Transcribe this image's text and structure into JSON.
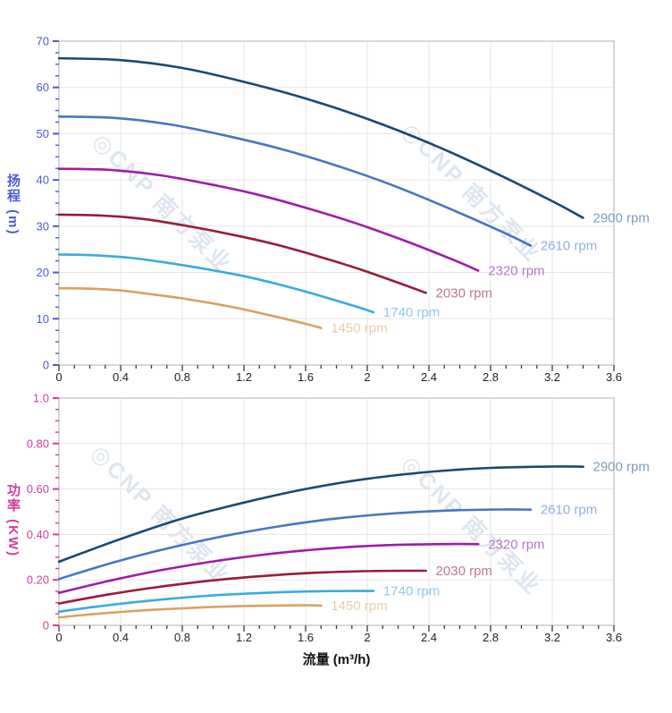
{
  "watermark": {
    "text": "◎CNP 南方泵业"
  },
  "x_axis": {
    "label": "流量 (m³/h)",
    "lim": [
      0,
      3.6
    ],
    "tick_values": [
      0,
      0.4,
      0.8,
      1.2,
      1.6,
      2,
      2.4,
      2.8,
      3.2,
      3.6
    ],
    "tick_labels": [
      "0",
      "0.4",
      "0.8",
      "1.2",
      "1.6",
      "2",
      "2.4",
      "2.8",
      "3.2",
      "3.6"
    ],
    "minor_step": 0.1
  },
  "chart_data": [
    {
      "type": "line",
      "id": "head",
      "title": "",
      "ylabel": "扬程 (m)",
      "xlabel": "流量 (m³/h)",
      "ylim": [
        0,
        70
      ],
      "axis_color": "#4a5ad8",
      "y_tick_values": [
        0,
        10,
        20,
        30,
        40,
        50,
        60,
        70
      ],
      "y_tick_labels": [
        "0",
        "10",
        "20",
        "30",
        "40",
        "50",
        "60",
        "70"
      ],
      "y_minor_step": 2.5,
      "grid": true,
      "legend_position": "right-of-curve-end",
      "series": [
        {
          "name": "2900 rpm",
          "color": "#1a4971",
          "label_color": "#7e9cc0",
          "points": [
            [
              0,
              66.3
            ],
            [
              0.4,
              65.9
            ],
            [
              0.8,
              64.2
            ],
            [
              1.2,
              61.2
            ],
            [
              1.6,
              57.6
            ],
            [
              2.0,
              53.2
            ],
            [
              2.4,
              48.0
            ],
            [
              2.8,
              42.0
            ],
            [
              3.2,
              35.4
            ],
            [
              3.4,
              31.8
            ]
          ]
        },
        {
          "name": "2610 rpm",
          "color": "#4775c2",
          "label_color": "#92afda",
          "points": [
            [
              0,
              53.7
            ],
            [
              0.36,
              53.4
            ],
            [
              0.72,
              52.0
            ],
            [
              1.08,
              49.6
            ],
            [
              1.44,
              46.7
            ],
            [
              1.8,
              43.1
            ],
            [
              2.16,
              38.9
            ],
            [
              2.52,
              34.0
            ],
            [
              2.88,
              28.7
            ],
            [
              3.06,
              25.8
            ]
          ]
        },
        {
          "name": "2320 rpm",
          "color": "#9d1da5",
          "label_color": "#b678c4",
          "points": [
            [
              0,
              42.4
            ],
            [
              0.32,
              42.2
            ],
            [
              0.64,
              41.1
            ],
            [
              0.96,
              39.2
            ],
            [
              1.28,
              36.9
            ],
            [
              1.6,
              34.0
            ],
            [
              1.92,
              30.7
            ],
            [
              2.24,
              26.9
            ],
            [
              2.56,
              22.7
            ],
            [
              2.72,
              20.4
            ]
          ]
        },
        {
          "name": "2030 rpm",
          "color": "#9c1a38",
          "label_color": "#bc7a8c",
          "points": [
            [
              0,
              32.5
            ],
            [
              0.28,
              32.3
            ],
            [
              0.56,
              31.5
            ],
            [
              0.84,
              30.0
            ],
            [
              1.12,
              28.2
            ],
            [
              1.4,
              26.1
            ],
            [
              1.68,
              23.5
            ],
            [
              1.96,
              20.6
            ],
            [
              2.24,
              17.3
            ],
            [
              2.38,
              15.6
            ]
          ]
        },
        {
          "name": "1740 rpm",
          "color": "#38abe0",
          "label_color": "#90cbe9",
          "points": [
            [
              0,
              23.9
            ],
            [
              0.24,
              23.7
            ],
            [
              0.48,
              23.1
            ],
            [
              0.72,
              22.0
            ],
            [
              0.96,
              20.7
            ],
            [
              1.2,
              19.2
            ],
            [
              1.44,
              17.3
            ],
            [
              1.68,
              15.1
            ],
            [
              1.92,
              12.7
            ],
            [
              2.04,
              11.4
            ]
          ]
        },
        {
          "name": "1450 rpm",
          "color": "#d8a260",
          "label_color": "#e9cda4",
          "points": [
            [
              0,
              16.6
            ],
            [
              0.2,
              16.5
            ],
            [
              0.4,
              16.1
            ],
            [
              0.6,
              15.3
            ],
            [
              0.8,
              14.4
            ],
            [
              1.0,
              13.3
            ],
            [
              1.2,
              12.0
            ],
            [
              1.4,
              10.5
            ],
            [
              1.6,
              8.9
            ],
            [
              1.7,
              8.0
            ]
          ]
        }
      ]
    },
    {
      "type": "line",
      "id": "power",
      "title": "",
      "ylabel": "功率 (KW)",
      "xlabel": "流量 (m³/h)",
      "ylim": [
        0,
        1.0
      ],
      "axis_color": "#cf3f9d",
      "y_tick_values": [
        0,
        0.2,
        0.4,
        0.6,
        0.8,
        1.0
      ],
      "y_tick_labels": [
        "0",
        "0.20",
        "0.40",
        "0.60",
        "0.80",
        "1.0"
      ],
      "y_minor_step": 0.05,
      "grid": true,
      "legend_position": "right-of-curve-end",
      "series": [
        {
          "name": "2900 rpm",
          "color": "#1a4971",
          "label_color": "#7e9cc0",
          "points": [
            [
              0,
              0.28
            ],
            [
              0.4,
              0.38
            ],
            [
              0.8,
              0.47
            ],
            [
              1.2,
              0.54
            ],
            [
              1.6,
              0.6
            ],
            [
              2.0,
              0.645
            ],
            [
              2.4,
              0.675
            ],
            [
              2.8,
              0.693
            ],
            [
              3.2,
              0.699
            ],
            [
              3.4,
              0.698
            ]
          ]
        },
        {
          "name": "2610 rpm",
          "color": "#4775c2",
          "label_color": "#92afda",
          "points": [
            [
              0,
              0.204
            ],
            [
              0.36,
              0.278
            ],
            [
              0.72,
              0.341
            ],
            [
              1.08,
              0.394
            ],
            [
              1.44,
              0.437
            ],
            [
              1.8,
              0.47
            ],
            [
              2.16,
              0.492
            ],
            [
              2.52,
              0.505
            ],
            [
              2.88,
              0.51
            ],
            [
              3.06,
              0.509
            ]
          ]
        },
        {
          "name": "2320 rpm",
          "color": "#9d1da5",
          "label_color": "#b678c4",
          "points": [
            [
              0,
              0.143
            ],
            [
              0.32,
              0.195
            ],
            [
              0.64,
              0.24
            ],
            [
              0.96,
              0.277
            ],
            [
              1.28,
              0.307
            ],
            [
              1.6,
              0.33
            ],
            [
              1.92,
              0.346
            ],
            [
              2.24,
              0.355
            ],
            [
              2.56,
              0.358
            ],
            [
              2.72,
              0.357
            ]
          ]
        },
        {
          "name": "2030 rpm",
          "color": "#9c1a38",
          "label_color": "#bc7a8c",
          "points": [
            [
              0,
              0.096
            ],
            [
              0.28,
              0.131
            ],
            [
              0.56,
              0.161
            ],
            [
              0.84,
              0.186
            ],
            [
              1.12,
              0.206
            ],
            [
              1.4,
              0.221
            ],
            [
              1.68,
              0.232
            ],
            [
              1.96,
              0.238
            ],
            [
              2.24,
              0.24
            ],
            [
              2.38,
              0.24
            ]
          ]
        },
        {
          "name": "1740 rpm",
          "color": "#38abe0",
          "label_color": "#90cbe9",
          "points": [
            [
              0,
              0.06
            ],
            [
              0.24,
              0.082
            ],
            [
              0.48,
              0.101
            ],
            [
              0.72,
              0.117
            ],
            [
              0.96,
              0.13
            ],
            [
              1.2,
              0.139
            ],
            [
              1.44,
              0.146
            ],
            [
              1.68,
              0.15
            ],
            [
              1.92,
              0.151
            ],
            [
              2.04,
              0.151
            ]
          ]
        },
        {
          "name": "1450 rpm",
          "color": "#d8a260",
          "label_color": "#e9cda4",
          "points": [
            [
              0,
              0.035
            ],
            [
              0.2,
              0.048
            ],
            [
              0.4,
              0.059
            ],
            [
              0.6,
              0.068
            ],
            [
              0.8,
              0.075
            ],
            [
              1.0,
              0.081
            ],
            [
              1.2,
              0.085
            ],
            [
              1.4,
              0.087
            ],
            [
              1.6,
              0.088
            ],
            [
              1.7,
              0.087
            ]
          ]
        }
      ]
    }
  ],
  "axis_titles": {
    "head": "扬程 (m)",
    "power": "功率 (KW)",
    "flow": "流量 (m³/h)"
  },
  "axis_title_colors": {
    "head": "#4a5ad8",
    "power": "#cf3f9d"
  }
}
